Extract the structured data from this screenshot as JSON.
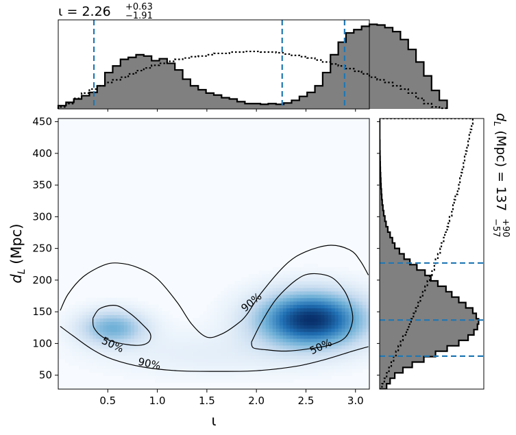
{
  "chart_data": [
    {
      "panel": "top-marginal",
      "type": "histogram",
      "title_param": "ι",
      "title_median": "2.26",
      "title_plus": "+0.63",
      "title_minus": "−1.91",
      "xlim": [
        0.0,
        3.14
      ],
      "bin_width": 0.0785,
      "posterior_values": [
        0.5,
        1.0,
        1.5,
        2.0,
        2.5,
        3.5,
        5.5,
        6.5,
        7.5,
        7.8,
        8.2,
        8.0,
        7.3,
        7.6,
        6.9,
        5.9,
        4.5,
        3.5,
        2.9,
        2.4,
        2.1,
        1.7,
        1.5,
        1.1,
        0.8,
        0.8,
        0.7,
        0.8,
        0.7,
        0.9,
        1.3,
        1.9,
        2.5,
        3.5,
        5.5,
        8.2,
        10.1,
        11.5,
        12.0,
        12.5,
        12.8,
        12.7,
        12.3,
        11.7,
        10.5,
        9.0,
        7.1,
        5.0,
        2.8,
        1.3
      ],
      "prior_values": [
        0.3,
        0.8,
        1.6,
        2.4,
        3.0,
        3.5,
        4.0,
        4.4,
        4.8,
        5.3,
        5.8,
        6.2,
        6.6,
        6.9,
        7.2,
        7.5,
        7.7,
        7.9,
        8.0,
        8.2,
        8.4,
        8.4,
        8.6,
        8.6,
        8.7,
        8.7,
        8.6,
        8.6,
        8.5,
        8.3,
        8.1,
        7.9,
        7.7,
        7.4,
        7.1,
        6.8,
        6.5,
        6.1,
        5.7,
        5.3,
        4.8,
        4.4,
        4.0,
        3.5,
        3.0,
        2.4,
        1.6,
        0.8,
        0.3,
        0.1
      ],
      "lines_x": [
        0.36,
        2.26,
        2.89
      ]
    },
    {
      "panel": "joint",
      "type": "heatmap",
      "xlabel": "ι",
      "ylabel": "d",
      "ylabel_sub": "L",
      "ylabel_unit": " (Mpc)",
      "xlim": [
        0.0,
        3.14
      ],
      "ylim": [
        28,
        455
      ],
      "xticks": [
        0.5,
        1.0,
        1.5,
        2.0,
        2.5,
        3.0
      ],
      "xtick_labels": [
        "0.5",
        "1.0",
        "1.5",
        "2.0",
        "2.5",
        "3.0"
      ],
      "yticks": [
        50,
        100,
        150,
        200,
        250,
        300,
        350,
        400,
        450
      ],
      "ytick_labels": [
        "50",
        "100",
        "150",
        "200",
        "250",
        "300",
        "350",
        "400",
        "450"
      ],
      "density_peaks": [
        {
          "x": 0.55,
          "y": 125,
          "sx": 0.22,
          "sy": 18,
          "amp": 0.42
        },
        {
          "x": 2.55,
          "y": 138,
          "sx": 0.35,
          "sy": 28,
          "amp": 1.0
        },
        {
          "x": 1.55,
          "y": 85,
          "sx": 0.8,
          "sy": 25,
          "amp": 0.06
        }
      ],
      "contour_labels": [
        "90%",
        "50%",
        "50%",
        "90%"
      ],
      "contours": [
        {
          "level": "90%",
          "points": [
            [
              0.02,
              152
            ],
            [
              0.1,
              178
            ],
            [
              0.25,
              205
            ],
            [
              0.45,
              223
            ],
            [
              0.6,
              227
            ],
            [
              0.8,
              220
            ],
            [
              1.0,
              202
            ],
            [
              1.2,
              165
            ],
            [
              1.35,
              130
            ],
            [
              1.5,
              110
            ],
            [
              1.65,
              115
            ],
            [
              1.8,
              130
            ],
            [
              1.9,
              145
            ],
            [
              2.05,
              180
            ],
            [
              2.3,
              225
            ],
            [
              2.5,
              245
            ],
            [
              2.75,
              255
            ],
            [
              2.95,
              247
            ],
            [
              3.05,
              230
            ],
            [
              3.13,
              208
            ]
          ]
        },
        {
          "level": "90%",
          "points": [
            [
              0.02,
              127
            ],
            [
              0.15,
              112
            ],
            [
              0.35,
              90
            ],
            [
              0.55,
              75
            ],
            [
              0.85,
              63
            ],
            [
              1.2,
              57
            ],
            [
              1.6,
              56
            ],
            [
              2.0,
              57
            ],
            [
              2.4,
              64
            ],
            [
              2.7,
              75
            ],
            [
              2.95,
              87
            ],
            [
              3.13,
              95
            ]
          ]
        },
        {
          "level": "50%",
          "points": [
            [
              0.35,
              140
            ],
            [
              0.42,
              155
            ],
            [
              0.58,
              160
            ],
            [
              0.72,
              148
            ],
            [
              0.85,
              130
            ],
            [
              0.93,
              115
            ],
            [
              0.91,
              102
            ],
            [
              0.8,
              97
            ],
            [
              0.6,
              101
            ],
            [
              0.45,
              110
            ],
            [
              0.36,
              125
            ],
            [
              0.35,
              140
            ]
          ]
        },
        {
          "level": "50%",
          "points": [
            [
              1.95,
              102
            ],
            [
              2.05,
              133
            ],
            [
              2.2,
              170
            ],
            [
              2.4,
              200
            ],
            [
              2.55,
              210
            ],
            [
              2.75,
              205
            ],
            [
              2.88,
              185
            ],
            [
              2.95,
              160
            ],
            [
              2.97,
              135
            ],
            [
              2.9,
              110
            ],
            [
              2.75,
              98
            ],
            [
              2.55,
              92
            ],
            [
              2.3,
              88
            ],
            [
              2.1,
              90
            ],
            [
              1.97,
              93
            ],
            [
              1.95,
              102
            ]
          ]
        }
      ]
    },
    {
      "panel": "right-marginal",
      "type": "histogram",
      "orientation": "horizontal",
      "title_param": "d",
      "title_sub": "L",
      "title_unit": " (Mpc)",
      "title_median": "137",
      "title_plus": "+90",
      "title_minus": "−57",
      "ylim": [
        28,
        455
      ],
      "bin_width": 8.54,
      "posterior_values": [
        0.6,
        0.9,
        1.3,
        2.0,
        2.8,
        3.8,
        4.8,
        5.8,
        6.8,
        7.6,
        8.1,
        8.4,
        8.5,
        8.3,
        8.0,
        7.4,
        6.8,
        6.2,
        5.7,
        5.0,
        4.4,
        3.9,
        3.2,
        2.6,
        2.1,
        1.7,
        1.3,
        1.1,
        0.9,
        0.7,
        0.55,
        0.45,
        0.35,
        0.28,
        0.22,
        0.18,
        0.15,
        0.12,
        0.1,
        0.08,
        0.06,
        0.05,
        0.04,
        0.03,
        0.02,
        0.02,
        0.01,
        0.01,
        0.01,
        0.01
      ],
      "prior_values": [
        0.2,
        0.4,
        0.6,
        0.8,
        1.0,
        1.2,
        1.4,
        1.6,
        1.8,
        2.0,
        2.3,
        2.5,
        2.7,
        2.9,
        3.1,
        3.3,
        3.5,
        3.7,
        3.9,
        4.1,
        4.3,
        4.5,
        4.7,
        4.8,
        5.0,
        5.2,
        5.3,
        5.5,
        5.6,
        5.8,
        5.9,
        6.0,
        6.2,
        6.3,
        6.4,
        6.5,
        6.7,
        6.8,
        6.9,
        7.0,
        7.1,
        7.2,
        7.3,
        7.4,
        7.5,
        7.6,
        7.7,
        7.8,
        7.9,
        8.0
      ],
      "lines_y": [
        80,
        137,
        227
      ]
    }
  ],
  "colors": {
    "posterior_fill": "#808080",
    "posterior_edge": "#000000",
    "prior": "#000000",
    "credible_lines": "#1f77b4",
    "heatmap_low": "#f7fbff",
    "heatmap_high": "#08306b"
  }
}
